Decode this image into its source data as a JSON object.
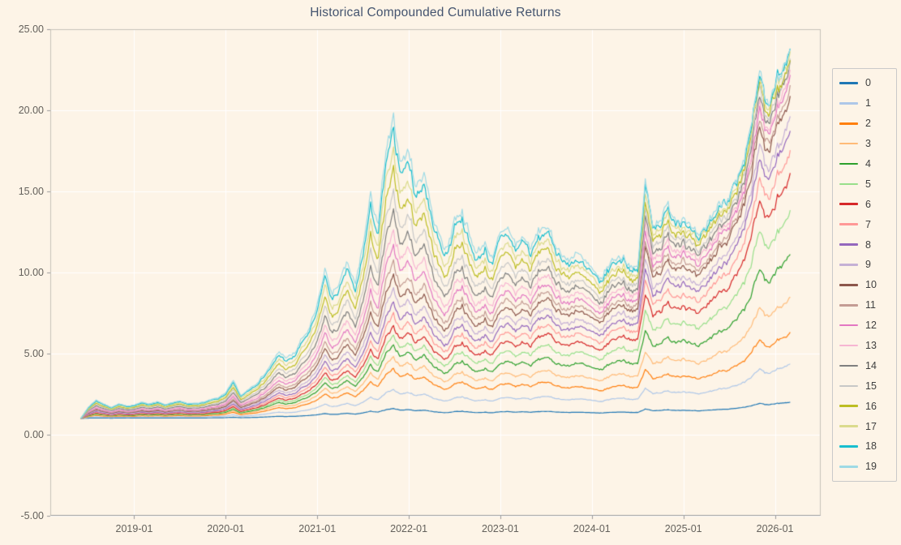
{
  "page": {
    "background": "#fdf4e7",
    "grid_color": "#ffffff",
    "spine_color": "#c6c2b8",
    "axis_color": "#9a9a9a",
    "title_color": "#44546f",
    "tick_color": "#64615c",
    "legend_border": "#c9c9c9"
  },
  "chart_data": {
    "type": "line",
    "title": "Historical Compounded Cumulative Returns",
    "xlabel": "",
    "ylabel": "",
    "ylim": [
      -5,
      25
    ],
    "grid": true,
    "legend_position": "right",
    "y_ticks": [
      "25.00",
      "20.00",
      "15.00",
      "10.00",
      "5.00",
      "0.00",
      "-5.00"
    ],
    "y_tick_values": [
      25,
      20,
      15,
      10,
      5,
      0,
      -5
    ],
    "x_ticks": [
      "2019-01",
      "2020-01",
      "2021-01",
      "2022-01",
      "2023-01",
      "2024-01",
      "2025-01",
      "2026-01"
    ],
    "x_axis_domain": [
      "2018-02",
      "2026-07"
    ],
    "data_start_month": "2018-06",
    "data_end_month": "2026-03",
    "x_interval": "month",
    "peak_date": "2021-11",
    "base_series_label": "19",
    "base_values": [
      1.0,
      1.7,
      2.15,
      1.9,
      1.7,
      1.9,
      1.75,
      1.85,
      2.0,
      1.9,
      2.05,
      1.85,
      1.95,
      2.1,
      1.9,
      1.95,
      2.0,
      2.15,
      2.25,
      2.6,
      3.3,
      2.4,
      2.8,
      3.2,
      3.7,
      4.4,
      5.1,
      4.7,
      5.0,
      5.9,
      6.6,
      7.9,
      10.2,
      8.6,
      9.4,
      10.6,
      9.1,
      11.6,
      14.6,
      13.0,
      17.3,
      19.3,
      16.8,
      17.5,
      15.3,
      16.4,
      13.8,
      12.2,
      11.4,
      13.4,
      13.9,
      12.1,
      11.2,
      11.9,
      10.8,
      12.3,
      12.9,
      11.7,
      12.3,
      11.5,
      12.5,
      12.9,
      11.9,
      11.2,
      10.7,
      11.3,
      10.6,
      10.2,
      9.4,
      10.3,
      10.9,
      11.1,
      10.5,
      10.2,
      15.4,
      13.1,
      13.4,
      13.9,
      13.4,
      13.6,
      12.7,
      12.0,
      12.9,
      13.7,
      14.4,
      14.9,
      15.4,
      16.6,
      19.4,
      22.1,
      20.2,
      21.2,
      22.6,
      23.5
    ],
    "series": [
      {
        "label": "0",
        "color": "#1f77b4",
        "peak_value": 1.6,
        "end_value": 2.0
      },
      {
        "label": "1",
        "color": "#aec7e8",
        "peak_value": 2.75,
        "end_value": 4.3
      },
      {
        "label": "2",
        "color": "#ff7f0e",
        "peak_value": 4.0,
        "end_value": 6.2
      },
      {
        "label": "3",
        "color": "#ffbb78",
        "peak_value": 4.7,
        "end_value": 8.4
      },
      {
        "label": "4",
        "color": "#2ca02c",
        "peak_value": 5.4,
        "end_value": 11.0
      },
      {
        "label": "5",
        "color": "#98df8a",
        "peak_value": 6.0,
        "end_value": 13.5
      },
      {
        "label": "6",
        "color": "#d62728",
        "peak_value": 6.6,
        "end_value": 15.7
      },
      {
        "label": "7",
        "color": "#ff9896",
        "peak_value": 7.3,
        "end_value": 17.2
      },
      {
        "label": "8",
        "color": "#9467bd",
        "peak_value": 8.0,
        "end_value": 18.5
      },
      {
        "label": "9",
        "color": "#c5b0d5",
        "peak_value": 8.8,
        "end_value": 19.3
      },
      {
        "label": "10",
        "color": "#8c564b",
        "peak_value": 9.6,
        "end_value": 20.6
      },
      {
        "label": "11",
        "color": "#c49c94",
        "peak_value": 10.4,
        "end_value": 21.1
      },
      {
        "label": "12",
        "color": "#e377c2",
        "peak_value": 11.4,
        "end_value": 21.6
      },
      {
        "label": "13",
        "color": "#f7b6d2",
        "peak_value": 12.4,
        "end_value": 22.0
      },
      {
        "label": "14",
        "color": "#7f7f7f",
        "peak_value": 13.5,
        "end_value": 22.4
      },
      {
        "label": "15",
        "color": "#c7c7c7",
        "peak_value": 14.7,
        "end_value": 22.7
      },
      {
        "label": "16",
        "color": "#bcbd22",
        "peak_value": 16.0,
        "end_value": 23.0
      },
      {
        "label": "17",
        "color": "#dbdb8d",
        "peak_value": 17.2,
        "end_value": 23.2
      },
      {
        "label": "18",
        "color": "#17becf",
        "peak_value": 18.4,
        "end_value": 23.4
      },
      {
        "label": "19",
        "color": "#9edae5",
        "peak_value": 19.3,
        "end_value": 23.5
      }
    ],
    "derivation": "series_i(t) = 1 + (base(t)-1)*s_i(t); s_i equals the peak anchor scale up to 2021-11 then interpolates linearly to the end anchor scale at 2026-03"
  }
}
